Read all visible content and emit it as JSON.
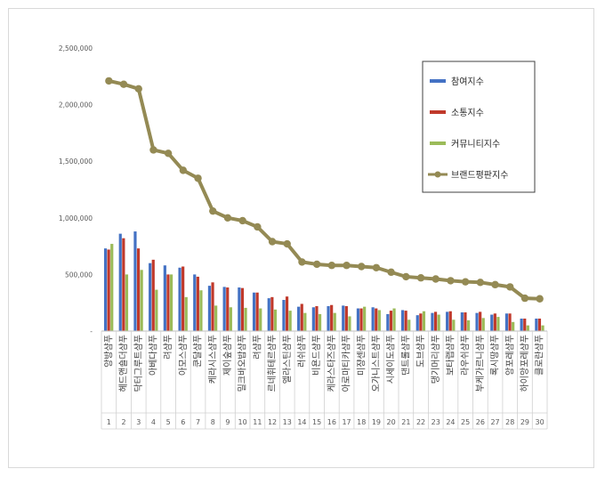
{
  "chart_data": {
    "type": "bar",
    "title": "",
    "xlabel": "",
    "ylabel": "",
    "ylim": [
      0,
      2500000
    ],
    "yticks": [
      "-",
      "500,000",
      "1,000,000",
      "1,500,000",
      "2,000,000",
      "2,500,000"
    ],
    "grid": false,
    "legend_position": "top-right",
    "categories": [
      "앙방샴푸",
      "헤드앤숄더샴푸",
      "닥터그루트샴푸",
      "아베다샴푸",
      "려샴푸",
      "아모스샴푸",
      "쿤달샴푸",
      "케라시스샴푸",
      "제이숲샴푸",
      "밀크바오밥샴푸",
      "려샴푸",
      "르네휘테르샴푸",
      "엘라스틴샴푸",
      "러쉬샴푸",
      "비욘드샴푸",
      "케라스타즈샴푸",
      "아로마티카샴푸",
      "미쟝센샴푸",
      "오가니스트샴푸",
      "시세이도샴푸",
      "댄트롤샴푸",
      "도브샴푸",
      "댕기머리샴푸",
      "보타랩샴푸",
      "라우쉬샴푸",
      "부케가르니샴푸",
      "록시땅샴푸",
      "앙포레샴푸",
      "하이앙포레샴푸",
      "클로란샴푸"
    ],
    "ranks": [
      "1",
      "2",
      "3",
      "4",
      "5",
      "6",
      "7",
      "8",
      "9",
      "10",
      "11",
      "12",
      "13",
      "14",
      "15",
      "16",
      "17",
      "18",
      "19",
      "20",
      "21",
      "22",
      "23",
      "24",
      "25",
      "26",
      "27",
      "28",
      "29",
      "30"
    ],
    "series": [
      {
        "name": "참여지수",
        "color": "#4472c4",
        "kind": "bar",
        "values": [
          730000,
          860000,
          880000,
          600000,
          580000,
          560000,
          500000,
          400000,
          390000,
          385000,
          340000,
          290000,
          275000,
          215000,
          210000,
          220000,
          225000,
          200000,
          210000,
          150000,
          185000,
          140000,
          160000,
          170000,
          165000,
          160000,
          145000,
          155000,
          110000,
          110000
        ]
      },
      {
        "name": "소통지수",
        "color": "#c0392b",
        "kind": "bar",
        "values": [
          720000,
          820000,
          730000,
          630000,
          500000,
          570000,
          480000,
          430000,
          385000,
          380000,
          340000,
          300000,
          305000,
          240000,
          220000,
          230000,
          220000,
          200000,
          200000,
          180000,
          180000,
          155000,
          170000,
          175000,
          165000,
          170000,
          155000,
          155000,
          110000,
          110000
        ]
      },
      {
        "name": "커뮤니티지수",
        "color": "#9bbb59",
        "kind": "bar",
        "values": [
          770000,
          500000,
          540000,
          365000,
          500000,
          300000,
          360000,
          225000,
          210000,
          205000,
          200000,
          190000,
          180000,
          160000,
          150000,
          160000,
          130000,
          215000,
          185000,
          200000,
          100000,
          175000,
          145000,
          100000,
          95000,
          115000,
          125000,
          80000,
          50000,
          50000
        ]
      },
      {
        "name": "브랜드평판지수",
        "color": "#948a54",
        "kind": "line",
        "values": [
          2210000,
          2180000,
          2140000,
          1600000,
          1570000,
          1420000,
          1350000,
          1060000,
          1000000,
          975000,
          920000,
          790000,
          770000,
          610000,
          590000,
          580000,
          580000,
          570000,
          560000,
          520000,
          480000,
          470000,
          460000,
          445000,
          435000,
          430000,
          410000,
          390000,
          290000,
          285000
        ]
      }
    ]
  }
}
